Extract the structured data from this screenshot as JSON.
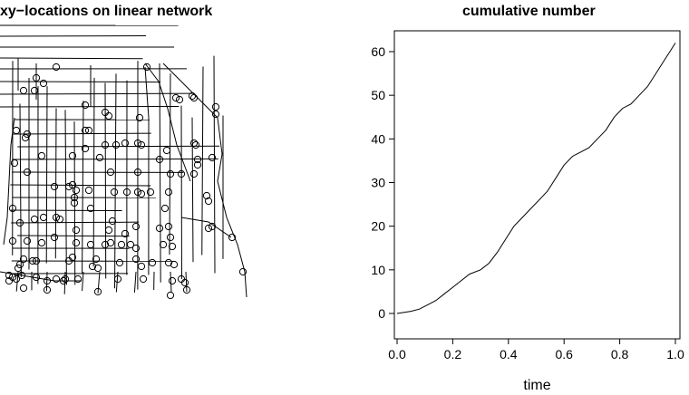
{
  "left_panel": {
    "title": "xy−locations on linear network"
  },
  "chart_data": {
    "type": "line",
    "title": "cumulative number",
    "xlabel": "time",
    "ylabel": "",
    "xlim": [
      0.0,
      1.0
    ],
    "ylim": [
      0,
      62
    ],
    "xticks": [
      "0.0",
      "0.2",
      "0.4",
      "0.6",
      "0.8",
      "1.0"
    ],
    "yticks": [
      "0",
      "10",
      "20",
      "30",
      "40",
      "50",
      "60"
    ],
    "grid": false,
    "series": [
      {
        "values": [
          [
            0.0,
            0
          ],
          [
            0.05,
            0.5
          ],
          [
            0.08,
            1
          ],
          [
            0.11,
            2
          ],
          [
            0.14,
            3
          ],
          [
            0.17,
            4.5
          ],
          [
            0.2,
            6
          ],
          [
            0.23,
            7.5
          ],
          [
            0.26,
            9
          ],
          [
            0.3,
            10
          ],
          [
            0.33,
            11.5
          ],
          [
            0.36,
            14
          ],
          [
            0.39,
            17
          ],
          [
            0.42,
            20
          ],
          [
            0.45,
            22
          ],
          [
            0.48,
            24
          ],
          [
            0.51,
            26
          ],
          [
            0.54,
            28
          ],
          [
            0.57,
            31
          ],
          [
            0.6,
            34
          ],
          [
            0.63,
            36
          ],
          [
            0.66,
            37
          ],
          [
            0.69,
            38
          ],
          [
            0.72,
            40
          ],
          [
            0.75,
            42
          ],
          [
            0.78,
            45
          ],
          [
            0.81,
            47
          ],
          [
            0.84,
            48
          ],
          [
            0.87,
            50
          ],
          [
            0.9,
            52
          ],
          [
            0.93,
            55
          ],
          [
            0.96,
            58
          ],
          [
            0.98,
            60
          ],
          [
            1.0,
            62
          ]
        ]
      }
    ]
  }
}
